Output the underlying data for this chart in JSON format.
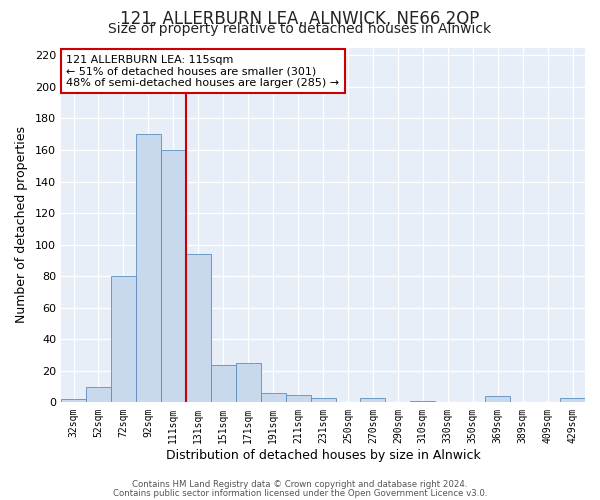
{
  "title": "121, ALLERBURN LEA, ALNWICK, NE66 2QP",
  "subtitle": "Size of property relative to detached houses in Alnwick",
  "xlabel": "Distribution of detached houses by size in Alnwick",
  "ylabel": "Number of detached properties",
  "bar_labels": [
    "32sqm",
    "52sqm",
    "72sqm",
    "92sqm",
    "111sqm",
    "131sqm",
    "151sqm",
    "171sqm",
    "191sqm",
    "211sqm",
    "231sqm",
    "250sqm",
    "270sqm",
    "290sqm",
    "310sqm",
    "330sqm",
    "350sqm",
    "369sqm",
    "389sqm",
    "409sqm",
    "429sqm"
  ],
  "bar_values": [
    2,
    10,
    80,
    170,
    160,
    94,
    24,
    25,
    6,
    5,
    3,
    0,
    3,
    0,
    1,
    0,
    0,
    4,
    0,
    0,
    3
  ],
  "bar_color": "#c8d9ee",
  "bar_edge_color": "#5b8dc0",
  "vline_color": "#cc0000",
  "ylim": [
    0,
    225
  ],
  "yticks": [
    0,
    20,
    40,
    60,
    80,
    100,
    120,
    140,
    160,
    180,
    200,
    220
  ],
  "annotation_title": "121 ALLERBURN LEA: 115sqm",
  "annotation_line1": "← 51% of detached houses are smaller (301)",
  "annotation_line2": "48% of semi-detached houses are larger (285) →",
  "annotation_box_color": "#ffffff",
  "annotation_box_edge": "#cc0000",
  "footer1": "Contains HM Land Registry data © Crown copyright and database right 2024.",
  "footer2": "Contains public sector information licensed under the Open Government Licence v3.0.",
  "background_color": "#ffffff",
  "plot_bg_color": "#e8eef7",
  "grid_color": "#ffffff",
  "title_fontsize": 12,
  "subtitle_fontsize": 10,
  "axis_label_fontsize": 9,
  "vline_bar_index": 4
}
